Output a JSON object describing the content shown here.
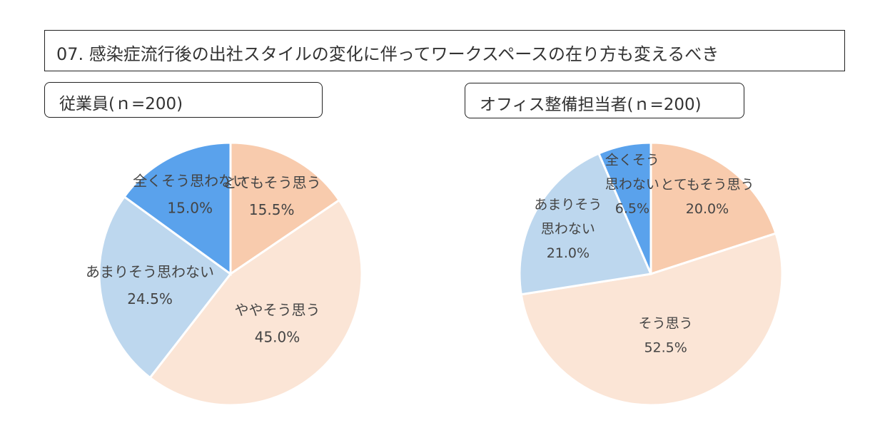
{
  "title": "07. 感染症流行後の出社スタイルの変化に伴ってワークスペースの在り方も変えるべき",
  "chart_data": [
    {
      "type": "pie",
      "title": "従業員(ｎ=200)",
      "slices": [
        {
          "label": "とてもそう思う",
          "value": 15.5,
          "display": "15.5%",
          "color": "#f8cbad"
        },
        {
          "label": "ややそう思う",
          "value": 45.0,
          "display": "45.0%",
          "color": "#fbe5d6"
        },
        {
          "label": "あまりそう思わない",
          "value": 24.5,
          "display": "24.5%",
          "color": "#bdd7ee"
        },
        {
          "label": "全くそう思わない",
          "value": 15.0,
          "display": "15.0%",
          "color": "#5aa2ec"
        }
      ]
    },
    {
      "type": "pie",
      "title": "オフィス整備担当者(ｎ=200)",
      "slices": [
        {
          "label": "とてもそう思う",
          "value": 20.0,
          "display": "20.0%",
          "color": "#f8cbad"
        },
        {
          "label": "そう思う",
          "value": 52.5,
          "display": "52.5%",
          "color": "#fbe5d6"
        },
        {
          "label": "あまりそう思わない",
          "label_lines": [
            "あまりそう",
            "思わない"
          ],
          "value": 21.0,
          "display": "21.0%",
          "color": "#bdd7ee"
        },
        {
          "label": "全くそう思わない",
          "label_lines": [
            "全くそう",
            "思わない"
          ],
          "value": 6.5,
          "display": "6.5%",
          "color": "#5aa2ec"
        }
      ]
    }
  ]
}
